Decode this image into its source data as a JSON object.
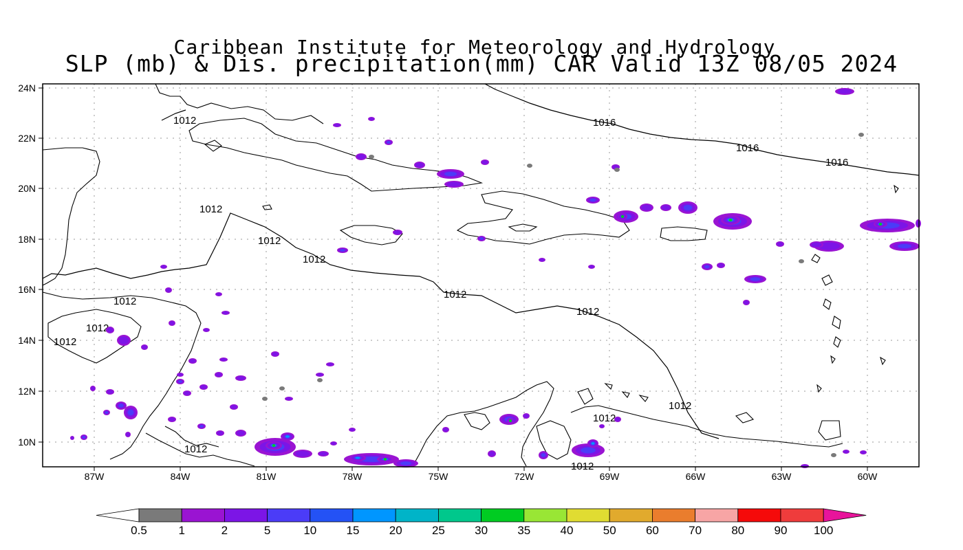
{
  "title": {
    "line1": "Caribbean Institute for Meteorology and Hydrology",
    "line2": "SLP (mb) & Dis. precipitation(mm) CAR Valid 13Z 08/05 2024"
  },
  "axes": {
    "lat_labels": [
      "24N",
      "22N",
      "20N",
      "18N",
      "16N",
      "14N",
      "12N",
      "10N"
    ],
    "lon_labels": [
      "87W",
      "84W",
      "81W",
      "78W",
      "75W",
      "72W",
      "69W",
      "66W",
      "63W",
      "60W"
    ]
  },
  "isobar_labels": [
    "1012",
    "1012",
    "1012",
    "1012",
    "1012",
    "1012",
    "1012",
    "1012",
    "1012",
    "1012",
    "1012",
    "1016",
    "1016",
    "1016",
    "1012",
    "1012"
  ],
  "colorbar": {
    "labels": [
      "0.5",
      "1",
      "2",
      "5",
      "10",
      "15",
      "20",
      "25",
      "30",
      "35",
      "40",
      "50",
      "60",
      "70",
      "80",
      "90",
      "100"
    ],
    "colors": [
      "#7a7a7a",
      "#9a14d2",
      "#7c15e6",
      "#4b3cf7",
      "#2452f5",
      "#0096ff",
      "#00b4c8",
      "#00c88c",
      "#00cc22",
      "#99e635",
      "#e0dc32",
      "#e1aa2d",
      "#ea7d2d",
      "#f7a5a5",
      "#f50a0a",
      "#ef3c3c",
      "#e8149b"
    ]
  }
}
